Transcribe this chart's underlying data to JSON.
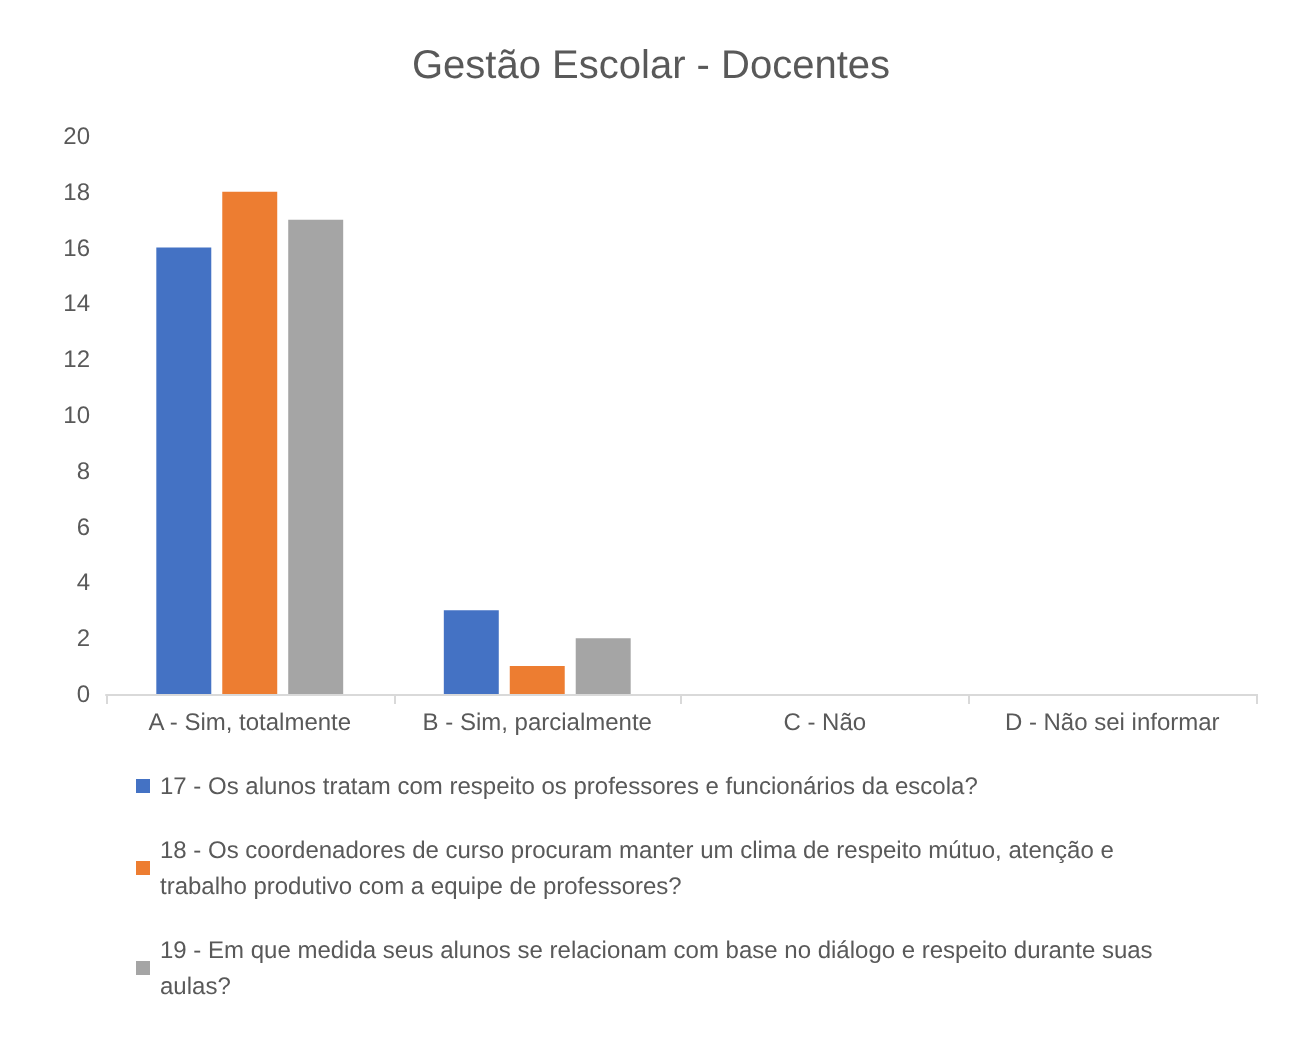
{
  "chart_data": {
    "type": "bar",
    "title": "Gestão Escolar - Docentes",
    "categories": [
      "A - Sim, totalmente",
      "B - Sim, parcialmente",
      "C - Não",
      "D - Não sei informar"
    ],
    "series": [
      {
        "name": "17 - Os alunos tratam com respeito os professores e funcionários da escola?",
        "color": "#4472c4",
        "values": [
          16,
          3,
          0,
          0
        ]
      },
      {
        "name": "18 - Os coordenadores de curso procuram manter um clima de respeito mútuo, atenção e trabalho produtivo com a equipe de professores?",
        "color": "#ed7d31",
        "values": [
          18,
          1,
          0,
          0
        ]
      },
      {
        "name": "19 - Em que medida seus alunos se relacionam com base no diálogo e respeito durante suas aulas?",
        "color": "#a5a5a5",
        "values": [
          17,
          2,
          0,
          0
        ]
      }
    ],
    "ylim": [
      0,
      20
    ],
    "yticks": [
      0,
      2,
      4,
      6,
      8,
      10,
      12,
      14,
      16,
      18,
      20
    ],
    "grid": false,
    "legend": "bottom"
  }
}
